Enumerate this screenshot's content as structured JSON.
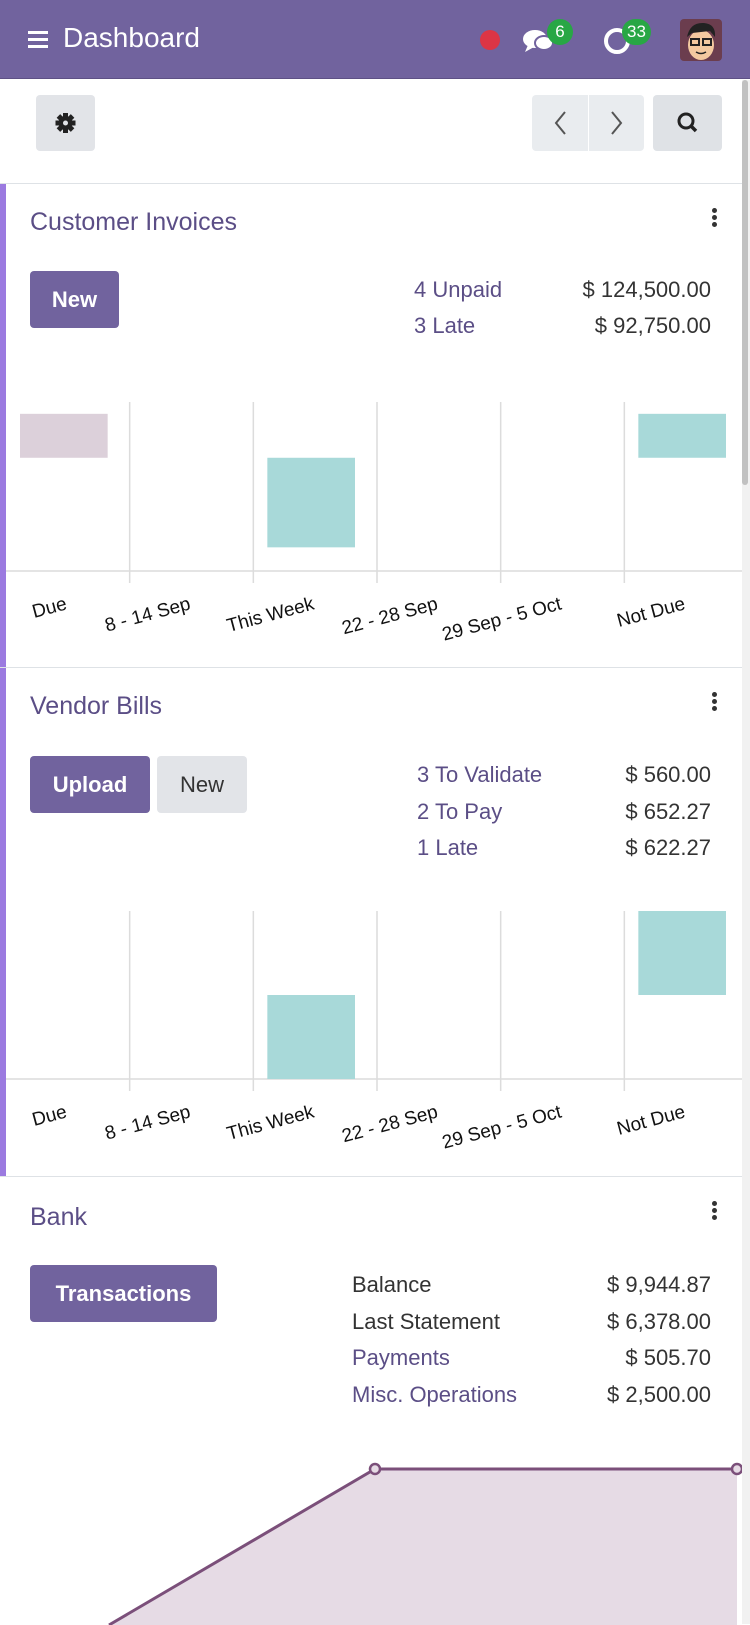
{
  "header": {
    "title": "Dashboard",
    "status_color": "#dc3545",
    "messages_count": "6",
    "activities_count": "33",
    "accent": "#71639e"
  },
  "toolbar": {
    "settings_icon": "gear-icon",
    "prev_icon": "chevron-left-icon",
    "next_icon": "chevron-right-icon",
    "search_icon": "search-icon"
  },
  "customer_invoices": {
    "title": "Customer Invoices",
    "new_label": "New",
    "rows": [
      {
        "label": "4 Unpaid",
        "value": "$ 124,500.00"
      },
      {
        "label": "3 Late",
        "value": "$ 92,750.00"
      }
    ]
  },
  "vendor_bills": {
    "title": "Vendor Bills",
    "upload_label": "Upload",
    "new_label": "New",
    "rows": [
      {
        "label": "3 To Validate",
        "value": "$ 560.00"
      },
      {
        "label": "2 To Pay",
        "value": "$ 652.27"
      },
      {
        "label": "1 Late",
        "value": "$ 622.27"
      }
    ]
  },
  "bank": {
    "title": "Bank",
    "transactions_label": "Transactions",
    "rows": [
      {
        "label": "Balance",
        "value": "$ 9,944.87",
        "link": false
      },
      {
        "label": "Last Statement",
        "value": "$ 6,378.00",
        "link": false
      },
      {
        "label": "Payments",
        "value": "$ 505.70",
        "link": true
      },
      {
        "label": "Misc. Operations",
        "value": "$ 2,500.00",
        "link": true
      }
    ]
  },
  "chart_data": [
    {
      "type": "bar",
      "categories": [
        "Due",
        "8 - 14 Sep",
        "This Week",
        "22 - 28 Sep",
        "29 Sep - 5 Oct",
        "Not Due"
      ],
      "bars": [
        {
          "category": "Due",
          "range": [
            67,
            93
          ],
          "color": "#dcd0da"
        },
        {
          "category": "This Week",
          "range": [
            14,
            67
          ],
          "color": "#a8d9d9"
        },
        {
          "category": "Not Due",
          "range": [
            67,
            93
          ],
          "color": "#a8d9d9"
        }
      ],
      "ylim": [
        0,
        100
      ],
      "grid": true
    },
    {
      "type": "bar",
      "categories": [
        "Due",
        "8 - 14 Sep",
        "This Week",
        "22 - 28 Sep",
        "29 Sep - 5 Oct",
        "Not Due"
      ],
      "bars": [
        {
          "category": "This Week",
          "range": [
            0,
            50
          ],
          "color": "#a8d9d9"
        },
        {
          "category": "Not Due",
          "range": [
            50,
            100
          ],
          "color": "#a8d9d9"
        }
      ],
      "ylim": [
        0,
        100
      ],
      "grid": true
    },
    {
      "type": "area",
      "x": [
        0,
        1,
        2
      ],
      "y": [
        0,
        60,
        60
      ],
      "ylim": [
        0,
        60
      ],
      "line_color": "#7b4f7a",
      "fill_color": "#e6dbe5"
    }
  ]
}
